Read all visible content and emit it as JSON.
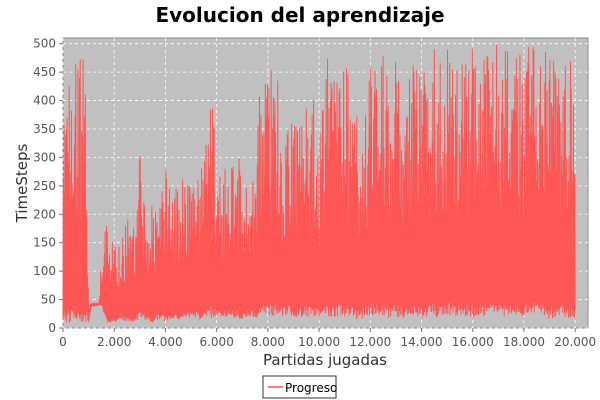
{
  "chart_data": {
    "type": "line",
    "title": "Evolucion del aprendizaje",
    "xlabel": "Partidas jugadas",
    "ylabel": "TimeSteps",
    "xlim": [
      0,
      20500
    ],
    "ylim": [
      0,
      510
    ],
    "x_ticks": [
      0,
      2000,
      4000,
      6000,
      8000,
      10000,
      12000,
      14000,
      16000,
      18000,
      20000
    ],
    "x_tick_labels": [
      "0",
      "2.000",
      "4.000",
      "6.000",
      "8.000",
      "10.000",
      "12.000",
      "14.000",
      "16.000",
      "18.000",
      "20.000"
    ],
    "y_ticks": [
      0,
      50,
      100,
      150,
      200,
      250,
      300,
      350,
      400,
      450,
      500
    ],
    "y_tick_labels": [
      "0",
      "50",
      "100",
      "150",
      "200",
      "250",
      "300",
      "350",
      "400",
      "450",
      "500"
    ],
    "grid": true,
    "plot_background": "#c0c0c0",
    "legend_position": "bottom-center",
    "series": [
      {
        "name": "Progreso",
        "color": "#ff5555",
        "x": [
          0,
          300,
          600,
          900,
          1000,
          1100,
          1400,
          1500,
          1700,
          2000,
          2300,
          2500,
          2800,
          3000,
          3300,
          3500,
          3700,
          4000,
          4300,
          4500,
          4800,
          5000,
          5300,
          5500,
          5800,
          6000,
          6300,
          6500,
          6800,
          7000,
          7300,
          7500,
          7800,
          8000,
          8300,
          8500,
          8800,
          9000,
          9300,
          9500,
          9800,
          10000,
          10300,
          10500,
          10800,
          11000,
          11300,
          11500,
          11800,
          12000,
          12300,
          12500,
          12800,
          13000,
          13300,
          13500,
          13800,
          14000,
          14300,
          14500,
          14800,
          15000,
          15300,
          15500,
          15800,
          16000,
          16300,
          16500,
          16800,
          17000,
          17300,
          17500,
          17800,
          18000,
          18300,
          18500,
          18800,
          19000,
          19300,
          19500,
          19800,
          20000
        ],
        "min": [
          10,
          10,
          10,
          10,
          10,
          38,
          40,
          40,
          10,
          10,
          15,
          10,
          12,
          15,
          12,
          10,
          15,
          12,
          15,
          15,
          20,
          18,
          15,
          15,
          18,
          20,
          18,
          20,
          18,
          15,
          20,
          18,
          22,
          18,
          20,
          20,
          22,
          20,
          20,
          20,
          18,
          20,
          22,
          18,
          22,
          20,
          20,
          15,
          18,
          20,
          20,
          22,
          15,
          20,
          18,
          22,
          20,
          15,
          22,
          20,
          18,
          22,
          20,
          22,
          20,
          18,
          20,
          20,
          22,
          20,
          18,
          20,
          25,
          20,
          25,
          22,
          20,
          15,
          22,
          20,
          15,
          18
        ],
        "max": [
          500,
          500,
          500,
          500,
          45,
          45,
          45,
          130,
          190,
          140,
          180,
          200,
          180,
          320,
          200,
          230,
          240,
          280,
          250,
          260,
          280,
          275,
          290,
          300,
          500,
          250,
          300,
          280,
          330,
          250,
          290,
          310,
          480,
          500,
          500,
          350,
          400,
          350,
          420,
          460,
          420,
          340,
          480,
          440,
          500,
          480,
          400,
          380,
          420,
          500,
          500,
          500,
          500,
          500,
          420,
          440,
          500,
          440,
          480,
          500,
          460,
          500,
          500,
          480,
          500,
          500,
          500,
          500,
          500,
          500,
          500,
          500,
          500,
          500,
          500,
          500,
          500,
          500,
          500,
          500,
          500,
          420
        ]
      }
    ]
  }
}
